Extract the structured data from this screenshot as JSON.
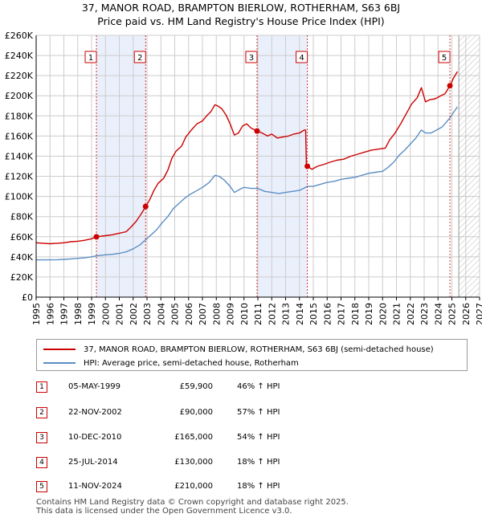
{
  "title_line1": "37, MANOR ROAD, BRAMPTON BIERLOW, ROTHERHAM, S63 6BJ",
  "title_line2": "Price paid vs. HM Land Registry's House Price Index (HPI)",
  "colors": {
    "red": "#cc0000",
    "blue": "#5b8ec4",
    "shade": "#eaf0fb",
    "grid": "#cccccc",
    "future_hatch": "#aaaaaa"
  },
  "chart_data": {
    "type": "line",
    "xlim": [
      1995,
      2027
    ],
    "ylim": [
      0,
      260000
    ],
    "y_ticks": [
      {
        "value": 0,
        "label": "£0"
      },
      {
        "value": 20000,
        "label": "£20K"
      },
      {
        "value": 40000,
        "label": "£40K"
      },
      {
        "value": 60000,
        "label": "£60K"
      },
      {
        "value": 80000,
        "label": "£80K"
      },
      {
        "value": 100000,
        "label": "£100K"
      },
      {
        "value": 120000,
        "label": "£120K"
      },
      {
        "value": 140000,
        "label": "£140K"
      },
      {
        "value": 160000,
        "label": "£160K"
      },
      {
        "value": 180000,
        "label": "£180K"
      },
      {
        "value": 200000,
        "label": "£200K"
      },
      {
        "value": 220000,
        "label": "£220K"
      },
      {
        "value": 240000,
        "label": "£240K"
      },
      {
        "value": 260000,
        "label": "£260K"
      }
    ],
    "x_ticks": [
      "1995",
      "1996",
      "1997",
      "1998",
      "1999",
      "2000",
      "2001",
      "2002",
      "2003",
      "2004",
      "2005",
      "2006",
      "2007",
      "2008",
      "2009",
      "2010",
      "2011",
      "2012",
      "2013",
      "2014",
      "2015",
      "2016",
      "2017",
      "2018",
      "2019",
      "2020",
      "2021",
      "2022",
      "2023",
      "2024",
      "2025",
      "2026",
      "2027"
    ],
    "future_from": 2025.5,
    "shaded_periods": [
      [
        1999.35,
        2002.9
      ],
      [
        2010.94,
        2014.57
      ]
    ],
    "series": [
      {
        "name": "37, MANOR ROAD, BRAMPTON BIERLOW, ROTHERHAM, S63 6BJ (semi-detached house)",
        "color": "#cc0000",
        "points": [
          [
            1995.0,
            54000
          ],
          [
            1995.5,
            53500
          ],
          [
            1996.0,
            53000
          ],
          [
            1996.5,
            53500
          ],
          [
            1997.0,
            54000
          ],
          [
            1997.5,
            55000
          ],
          [
            1998.0,
            55500
          ],
          [
            1998.5,
            56500
          ],
          [
            1999.0,
            58000
          ],
          [
            1999.35,
            59900
          ],
          [
            1999.7,
            60500
          ],
          [
            2000.0,
            61000
          ],
          [
            2000.5,
            62000
          ],
          [
            2001.0,
            63500
          ],
          [
            2001.5,
            65000
          ],
          [
            2001.8,
            69000
          ],
          [
            2002.2,
            75000
          ],
          [
            2002.6,
            83000
          ],
          [
            2002.9,
            90000
          ],
          [
            2003.2,
            97000
          ],
          [
            2003.5,
            106000
          ],
          [
            2003.8,
            113000
          ],
          [
            2004.2,
            118000
          ],
          [
            2004.5,
            126000
          ],
          [
            2004.8,
            138000
          ],
          [
            2005.1,
            145000
          ],
          [
            2005.5,
            150000
          ],
          [
            2005.8,
            159000
          ],
          [
            2006.2,
            166000
          ],
          [
            2006.6,
            172000
          ],
          [
            2007.0,
            175000
          ],
          [
            2007.3,
            180000
          ],
          [
            2007.6,
            184000
          ],
          [
            2007.9,
            191000
          ],
          [
            2008.1,
            190000
          ],
          [
            2008.4,
            187000
          ],
          [
            2008.7,
            181000
          ],
          [
            2009.0,
            172000
          ],
          [
            2009.3,
            161000
          ],
          [
            2009.6,
            163000
          ],
          [
            2009.9,
            170000
          ],
          [
            2010.2,
            172000
          ],
          [
            2010.5,
            168000
          ],
          [
            2010.94,
            165000
          ],
          [
            2011.3,
            163000
          ],
          [
            2011.7,
            160000
          ],
          [
            2012.0,
            162000
          ],
          [
            2012.4,
            158000
          ],
          [
            2012.8,
            159000
          ],
          [
            2013.2,
            160000
          ],
          [
            2013.6,
            162000
          ],
          [
            2014.0,
            163000
          ],
          [
            2014.35,
            166000
          ],
          [
            2014.45,
            166000
          ],
          [
            2014.5,
            130000
          ],
          [
            2014.57,
            130000
          ],
          [
            2014.9,
            127000
          ],
          [
            2015.3,
            130000
          ],
          [
            2015.8,
            132000
          ],
          [
            2016.2,
            134000
          ],
          [
            2016.7,
            136000
          ],
          [
            2017.2,
            137000
          ],
          [
            2017.7,
            140000
          ],
          [
            2018.2,
            142000
          ],
          [
            2018.7,
            144000
          ],
          [
            2019.2,
            146000
          ],
          [
            2019.7,
            147000
          ],
          [
            2020.2,
            148000
          ],
          [
            2020.5,
            156000
          ],
          [
            2020.9,
            163000
          ],
          [
            2021.3,
            172000
          ],
          [
            2021.7,
            182000
          ],
          [
            2022.1,
            192000
          ],
          [
            2022.5,
            198000
          ],
          [
            2022.8,
            208000
          ],
          [
            2023.1,
            194000
          ],
          [
            2023.4,
            196000
          ],
          [
            2023.8,
            197000
          ],
          [
            2024.2,
            200000
          ],
          [
            2024.5,
            202000
          ],
          [
            2024.86,
            210000
          ],
          [
            2025.1,
            217000
          ],
          [
            2025.4,
            224000
          ]
        ]
      },
      {
        "name": "HPI: Average price, semi-detached house, Rotherham",
        "color": "#5b8ec4",
        "points": [
          [
            1995.0,
            37000
          ],
          [
            1995.5,
            37000
          ],
          [
            1996.0,
            37000
          ],
          [
            1996.5,
            37200
          ],
          [
            1997.0,
            37500
          ],
          [
            1997.5,
            38000
          ],
          [
            1998.0,
            38500
          ],
          [
            1998.5,
            39000
          ],
          [
            1999.0,
            40000
          ],
          [
            1999.35,
            41000
          ],
          [
            2000.0,
            42000
          ],
          [
            2000.5,
            42500
          ],
          [
            2001.0,
            43500
          ],
          [
            2001.5,
            45000
          ],
          [
            2002.0,
            48000
          ],
          [
            2002.5,
            52000
          ],
          [
            2002.9,
            57000
          ],
          [
            2003.3,
            62000
          ],
          [
            2003.7,
            67000
          ],
          [
            2004.1,
            74000
          ],
          [
            2004.5,
            80000
          ],
          [
            2004.9,
            88000
          ],
          [
            2005.3,
            93000
          ],
          [
            2005.7,
            98000
          ],
          [
            2006.1,
            102000
          ],
          [
            2006.5,
            105000
          ],
          [
            2007.0,
            109000
          ],
          [
            2007.5,
            114000
          ],
          [
            2007.9,
            121000
          ],
          [
            2008.2,
            120000
          ],
          [
            2008.6,
            116000
          ],
          [
            2009.0,
            110000
          ],
          [
            2009.3,
            104000
          ],
          [
            2009.7,
            107000
          ],
          [
            2010.0,
            109000
          ],
          [
            2010.5,
            108000
          ],
          [
            2011.0,
            108000
          ],
          [
            2011.5,
            105000
          ],
          [
            2012.0,
            104000
          ],
          [
            2012.5,
            103000
          ],
          [
            2013.0,
            104000
          ],
          [
            2013.5,
            105000
          ],
          [
            2014.0,
            106000
          ],
          [
            2014.57,
            110000
          ],
          [
            2015.0,
            110000
          ],
          [
            2015.5,
            112000
          ],
          [
            2016.0,
            114000
          ],
          [
            2016.5,
            115000
          ],
          [
            2017.0,
            117000
          ],
          [
            2017.5,
            118000
          ],
          [
            2018.0,
            119000
          ],
          [
            2018.5,
            121000
          ],
          [
            2019.0,
            123000
          ],
          [
            2019.5,
            124000
          ],
          [
            2020.0,
            125000
          ],
          [
            2020.4,
            129000
          ],
          [
            2020.8,
            134000
          ],
          [
            2021.2,
            141000
          ],
          [
            2021.6,
            146000
          ],
          [
            2022.0,
            152000
          ],
          [
            2022.4,
            158000
          ],
          [
            2022.8,
            166000
          ],
          [
            2023.1,
            163000
          ],
          [
            2023.5,
            163000
          ],
          [
            2023.9,
            166000
          ],
          [
            2024.3,
            169000
          ],
          [
            2024.86,
            178000
          ],
          [
            2025.1,
            183000
          ],
          [
            2025.4,
            189000
          ]
        ]
      }
    ],
    "sales": [
      {
        "id": "1",
        "x": 1999.35,
        "y": 59900
      },
      {
        "id": "2",
        "x": 2002.9,
        "y": 90000
      },
      {
        "id": "3",
        "x": 2010.94,
        "y": 165000
      },
      {
        "id": "4",
        "x": 2014.57,
        "y": 130000
      },
      {
        "id": "5",
        "x": 2024.86,
        "y": 210000
      }
    ]
  },
  "legend": {
    "red_label": "37, MANOR ROAD, BRAMPTON BIERLOW, ROTHERHAM, S63 6BJ (semi-detached house)",
    "blue_label": "HPI: Average price, semi-detached house, Rotherham"
  },
  "transactions": [
    {
      "num": "1",
      "date": "05-MAY-1999",
      "price": "£59,900",
      "hpi": "46% ↑ HPI"
    },
    {
      "num": "2",
      "date": "22-NOV-2002",
      "price": "£90,000",
      "hpi": "57% ↑ HPI"
    },
    {
      "num": "3",
      "date": "10-DEC-2010",
      "price": "£165,000",
      "hpi": "54% ↑ HPI"
    },
    {
      "num": "4",
      "date": "25-JUL-2014",
      "price": "£130,000",
      "hpi": "18% ↑ HPI"
    },
    {
      "num": "5",
      "date": "11-NOV-2024",
      "price": "£210,000",
      "hpi": "18% ↑ HPI"
    }
  ],
  "footer_line1": "Contains HM Land Registry data © Crown copyright and database right 2025.",
  "footer_line2": "This data is licensed under the Open Government Licence v3.0."
}
